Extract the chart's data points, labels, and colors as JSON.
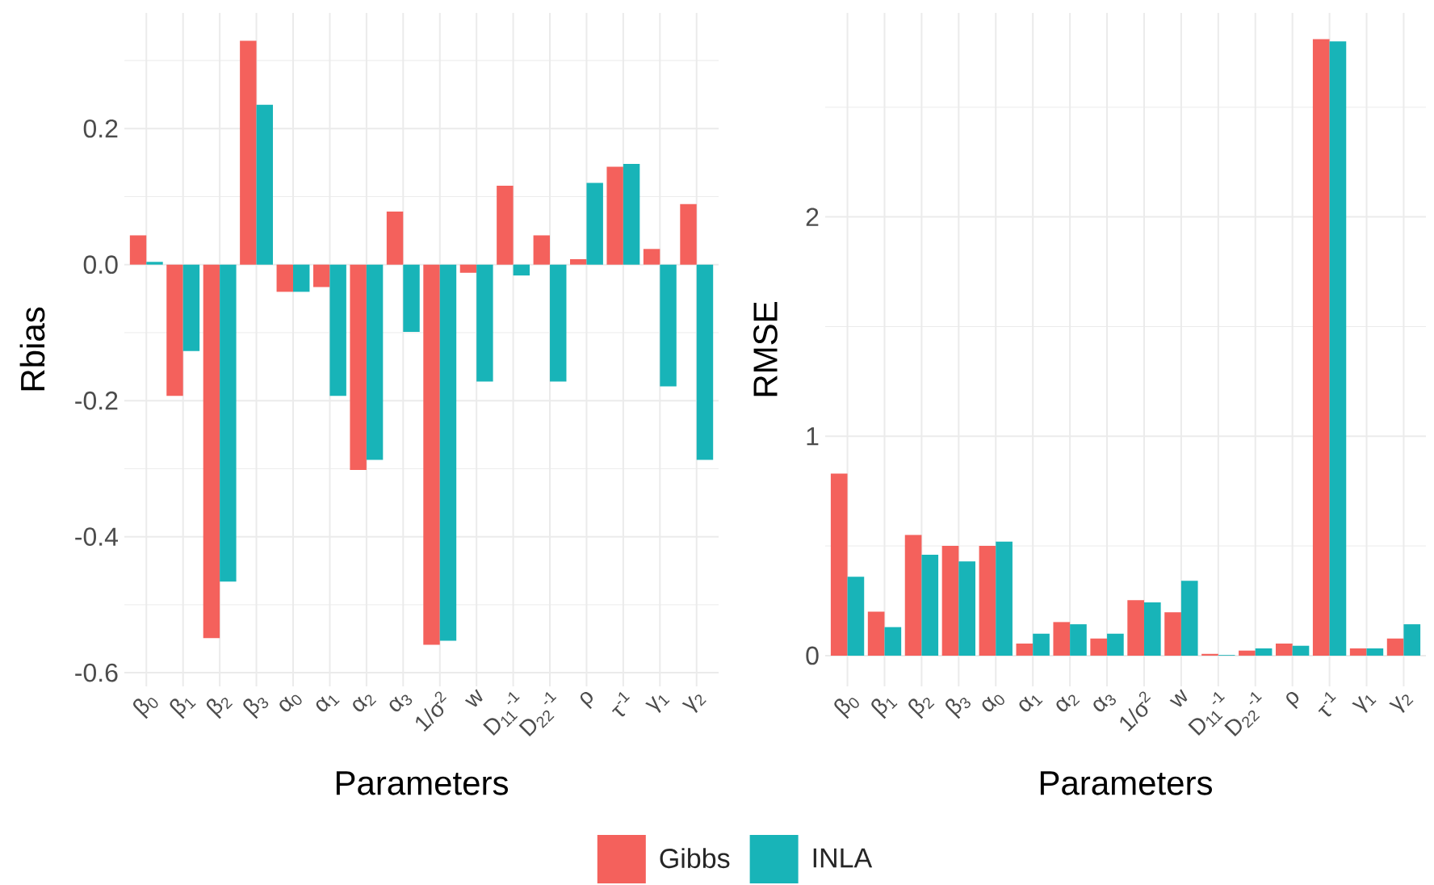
{
  "chart_data": [
    {
      "type": "bar",
      "xlabel": "Parameters",
      "ylabel": "Rbias",
      "categories": [
        "β$_{0}$",
        "β$_{1}$",
        "β$_{2}$",
        "β$_{3}$",
        "α$_{0}$",
        "α$_{1}$",
        "α$_{2}$",
        "α$_{3}$",
        "1/σ$^{2}$",
        "w",
        "D$_{11}$$^{-1}$",
        "D$_{22}$$^{-1}$",
        "ρ",
        "τ$^{-1}$",
        "γ$_{1}$",
        "γ$_{2}$"
      ],
      "series": [
        {
          "name": "Gibbs",
          "color": "#f4615c",
          "values": [
            0.043,
            -0.193,
            -0.549,
            0.329,
            -0.04,
            -0.033,
            -0.302,
            0.078,
            -0.559,
            -0.012,
            0.116,
            0.043,
            0.008,
            0.144,
            0.023,
            0.089
          ]
        },
        {
          "name": "INLA",
          "color": "#18b4b8",
          "values": [
            0.004,
            -0.127,
            -0.466,
            0.235,
            -0.04,
            -0.193,
            -0.287,
            -0.099,
            -0.553,
            -0.172,
            -0.016,
            -0.172,
            0.12,
            0.148,
            -0.179,
            -0.287
          ]
        }
      ],
      "ylim": [
        -0.62,
        0.37
      ],
      "yticks": [
        -0.6,
        {
          "value": -0.5,
          "label": null
        },
        -0.4,
        {
          "value": -0.3,
          "label": null
        },
        -0.2,
        {
          "value": -0.1,
          "label": null
        },
        {
          "value": 0,
          "label": "0.0"
        },
        {
          "value": 0.1,
          "label": null
        },
        0.2,
        {
          "value": 0.3,
          "label": null
        }
      ],
      "grid": true,
      "legend": "bottom"
    },
    {
      "type": "bar",
      "xlabel": "Parameters",
      "ylabel": "RMSE",
      "categories": [
        "β$_{0}$",
        "β$_{1}$",
        "β$_{2}$",
        "β$_{3}$",
        "α$_{0}$",
        "α$_{1}$",
        "α$_{2}$",
        "α$_{3}$",
        "1/σ$^{2}$",
        "w",
        "D$_{11}$$^{-1}$",
        "D$_{22}$$^{-1}$",
        "ρ",
        "τ$^{-1}$",
        "γ$_{1}$",
        "γ$_{2}$"
      ],
      "series": [
        {
          "color": "#f4615c",
          "values": [
            0.83,
            0.2,
            0.55,
            0.5,
            0.5,
            0.055,
            0.153,
            0.078,
            0.253,
            0.198,
            0.008,
            0.023,
            0.055,
            2.81,
            0.033,
            0.078
          ]
        },
        {
          "color": "#18b4b8",
          "values": [
            0.36,
            0.13,
            0.46,
            0.43,
            0.52,
            0.1,
            0.143,
            0.1,
            0.243,
            0.341,
            0.003,
            0.033,
            0.045,
            2.8,
            0.033,
            0.143
          ]
        }
      ],
      "ylim": [
        -0.14,
        2.93
      ],
      "yticks": [
        0,
        {
          "value": 0.5,
          "label": null
        },
        1,
        {
          "value": 1.5,
          "label": null
        },
        2,
        {
          "value": 2.5,
          "label": null
        }
      ],
      "grid": true
    }
  ]
}
